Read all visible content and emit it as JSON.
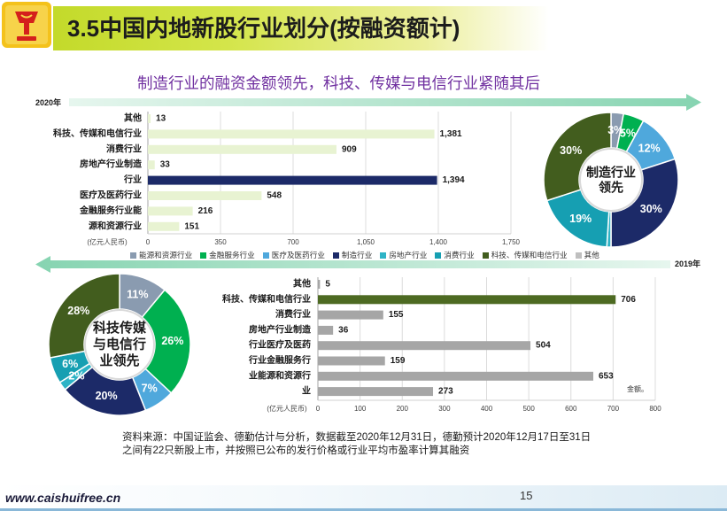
{
  "header": {
    "title": "3.5中国内地新股行业划分(按融资额计)"
  },
  "subtitle": "制造行业的融资金额领先，科技、传媒与电信行业紧随其后",
  "periods": {
    "top": "2020年",
    "bottom": "2019年"
  },
  "icons": {
    "logo": "logo-emblem",
    "timeline_right": "arrow-right",
    "timeline_left": "arrow-left"
  },
  "colors": {
    "title_banner": "#c3da2a",
    "subtitle": "#7030a0",
    "timeline_arrow": "#86d4b1"
  },
  "legend": [
    {
      "label": "能源和资源行业",
      "color": "#8a9bb0"
    },
    {
      "label": "金融服务行业",
      "color": "#00b050"
    },
    {
      "label": "医疗及医药行业",
      "color": "#4fa8dc"
    },
    {
      "label": "制造行业",
      "color": "#1c2a68"
    },
    {
      "label": "房地产行业",
      "color": "#2eb3c6"
    },
    {
      "label": "消费行业",
      "color": "#169fb2"
    },
    {
      "label": "科技、传媒和电信行业",
      "color": "#425d1e"
    },
    {
      "label": "其他",
      "color": "#bfbfbf"
    }
  ],
  "chart_data": [
    {
      "type": "bar",
      "orientation": "horizontal",
      "categories": [
        "其他",
        "科技、传媒和电信行业",
        "消费行业",
        "房地产行业制造",
        "行业",
        "医疗及医药行业",
        "金融服务行业能",
        "源和资源行业"
      ],
      "values": [
        13,
        1381,
        909,
        33,
        1394,
        548,
        216,
        151
      ],
      "bar_colors": [
        "#e8f3d2",
        "#e8f3d2",
        "#e8f3d2",
        "#e8f3d2",
        "#1c2a68",
        "#e8f3d2",
        "#e8f3d2",
        "#e8f3d2"
      ],
      "xlim": [
        0,
        1750
      ],
      "xticks": [
        0,
        350,
        700,
        1050,
        1400,
        1750
      ],
      "xlabel": "(亿元人民币)",
      "grid": true
    },
    {
      "type": "pie",
      "style": "donut",
      "slices": [
        {
          "category": "能源和资源行业",
          "value": 3
        },
        {
          "category": "金融服务行业",
          "value": 5
        },
        {
          "category": "医疗及医药行业",
          "value": 12
        },
        {
          "category": "制造行业",
          "value": 30
        },
        {
          "category": "房地产行业",
          "value": 1,
          "label_visible": false
        },
        {
          "category": "消费行业",
          "value": 19
        },
        {
          "category": "科技、传媒和电信行业",
          "value": 30
        }
      ],
      "center_label": [
        "制造行业",
        "领先"
      ]
    },
    {
      "type": "bar",
      "orientation": "horizontal",
      "categories": [
        "其他",
        "科技、传媒和电信行业",
        "消费行业",
        "房地产行业制造",
        "行业医疗及医药",
        "行业金融服务行",
        "业能源和资源行",
        "业"
      ],
      "values": [
        5,
        706,
        155,
        36,
        504,
        159,
        653,
        273
      ],
      "bar_colors": [
        "#a6a6a6",
        "#4d6a22",
        "#a6a6a6",
        "#a6a6a6",
        "#a6a6a6",
        "#a6a6a6",
        "#a6a6a6",
        "#a6a6a6"
      ],
      "xlim": [
        0,
        800
      ],
      "xticks": [
        0,
        100,
        200,
        300,
        400,
        500,
        600,
        700,
        800
      ],
      "xlabel": "(亿元人民币)",
      "grid": true
    },
    {
      "type": "pie",
      "style": "donut",
      "slices": [
        {
          "category": "能源和资源行业",
          "value": 11
        },
        {
          "category": "金融服务行业",
          "value": 26
        },
        {
          "category": "医疗及医药行业",
          "value": 7
        },
        {
          "category": "制造行业",
          "value": 20
        },
        {
          "category": "房地产行业",
          "value": 2
        },
        {
          "category": "消费行业",
          "value": 6
        },
        {
          "category": "科技、传媒和电信行业",
          "value": 28
        }
      ],
      "center_label": [
        "科技传媒",
        "与电信行",
        "业领先"
      ]
    }
  ],
  "note": "金额。",
  "footer": {
    "source_lines": [
      "资料来源：中国证监会、德勤估计与分析，数据截至2020年12月31日，德勤预计2020年12月17日至31日",
      "之间有22只新股上市，并按照已公布的发行价格或行业平均市盈率计算其融资"
    ],
    "page_number": "15",
    "website": "www.caishuifree.cn"
  }
}
